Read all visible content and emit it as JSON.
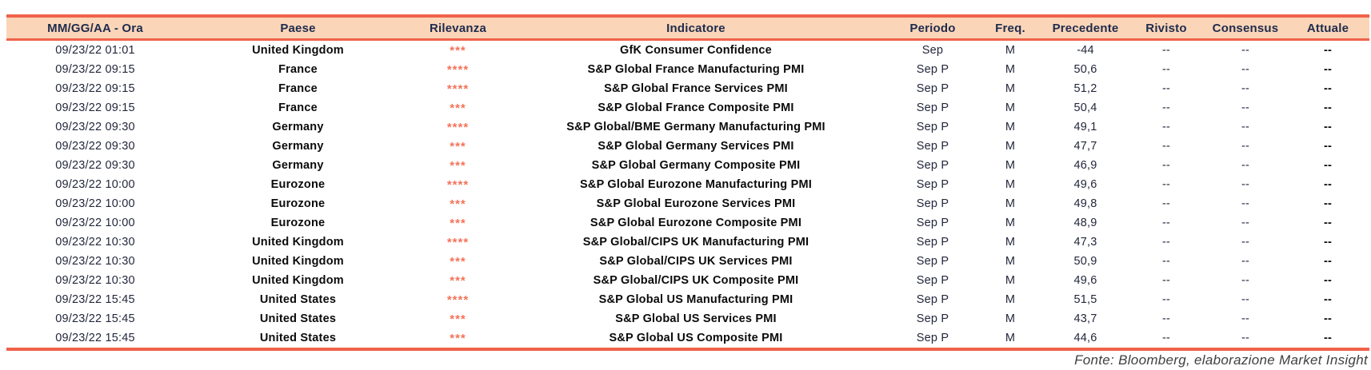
{
  "header": {
    "columns": [
      "MM/GG/AA - Ora",
      "Paese",
      "Rilevanza",
      "Indicatore",
      "Periodo",
      "Freq.",
      "Precedente",
      "Rivisto",
      "Consensus",
      "Attuale"
    ]
  },
  "rows": [
    {
      "datetime": "09/23/22 01:01",
      "country": "United Kingdom",
      "relevance": "***",
      "indicator": "GfK Consumer Confidence",
      "period": "Sep",
      "freq": "M",
      "previous": "-44",
      "revised": "--",
      "consensus": "--",
      "actual": "--"
    },
    {
      "datetime": "09/23/22 09:15",
      "country": "France",
      "relevance": "****",
      "indicator": "S&P Global France Manufacturing PMI",
      "period": "Sep P",
      "freq": "M",
      "previous": "50,6",
      "revised": "--",
      "consensus": "--",
      "actual": "--"
    },
    {
      "datetime": "09/23/22 09:15",
      "country": "France",
      "relevance": "****",
      "indicator": "S&P Global France Services PMI",
      "period": "Sep P",
      "freq": "M",
      "previous": "51,2",
      "revised": "--",
      "consensus": "--",
      "actual": "--"
    },
    {
      "datetime": "09/23/22 09:15",
      "country": "France",
      "relevance": "***",
      "indicator": "S&P Global France Composite PMI",
      "period": "Sep P",
      "freq": "M",
      "previous": "50,4",
      "revised": "--",
      "consensus": "--",
      "actual": "--"
    },
    {
      "datetime": "09/23/22 09:30",
      "country": "Germany",
      "relevance": "****",
      "indicator": "S&P Global/BME Germany Manufacturing PMI",
      "period": "Sep P",
      "freq": "M",
      "previous": "49,1",
      "revised": "--",
      "consensus": "--",
      "actual": "--"
    },
    {
      "datetime": "09/23/22 09:30",
      "country": "Germany",
      "relevance": "***",
      "indicator": "S&P Global Germany Services PMI",
      "period": "Sep P",
      "freq": "M",
      "previous": "47,7",
      "revised": "--",
      "consensus": "--",
      "actual": "--"
    },
    {
      "datetime": "09/23/22 09:30",
      "country": "Germany",
      "relevance": "***",
      "indicator": "S&P Global Germany Composite PMI",
      "period": "Sep P",
      "freq": "M",
      "previous": "46,9",
      "revised": "--",
      "consensus": "--",
      "actual": "--"
    },
    {
      "datetime": "09/23/22 10:00",
      "country": "Eurozone",
      "relevance": "****",
      "indicator": "S&P Global Eurozone Manufacturing PMI",
      "period": "Sep P",
      "freq": "M",
      "previous": "49,6",
      "revised": "--",
      "consensus": "--",
      "actual": "--"
    },
    {
      "datetime": "09/23/22 10:00",
      "country": "Eurozone",
      "relevance": "***",
      "indicator": "S&P Global Eurozone Services PMI",
      "period": "Sep P",
      "freq": "M",
      "previous": "49,8",
      "revised": "--",
      "consensus": "--",
      "actual": "--"
    },
    {
      "datetime": "09/23/22 10:00",
      "country": "Eurozone",
      "relevance": "***",
      "indicator": "S&P Global Eurozone Composite PMI",
      "period": "Sep P",
      "freq": "M",
      "previous": "48,9",
      "revised": "--",
      "consensus": "--",
      "actual": "--"
    },
    {
      "datetime": "09/23/22 10:30",
      "country": "United Kingdom",
      "relevance": "****",
      "indicator": "S&P Global/CIPS UK Manufacturing PMI",
      "period": "Sep P",
      "freq": "M",
      "previous": "47,3",
      "revised": "--",
      "consensus": "--",
      "actual": "--"
    },
    {
      "datetime": "09/23/22 10:30",
      "country": "United Kingdom",
      "relevance": "***",
      "indicator": "S&P Global/CIPS UK Services PMI",
      "period": "Sep P",
      "freq": "M",
      "previous": "50,9",
      "revised": "--",
      "consensus": "--",
      "actual": "--"
    },
    {
      "datetime": "09/23/22 10:30",
      "country": "United Kingdom",
      "relevance": "***",
      "indicator": "S&P Global/CIPS UK Composite PMI",
      "period": "Sep P",
      "freq": "M",
      "previous": "49,6",
      "revised": "--",
      "consensus": "--",
      "actual": "--"
    },
    {
      "datetime": "09/23/22 15:45",
      "country": "United States",
      "relevance": "****",
      "indicator": "S&P Global US Manufacturing PMI",
      "period": "Sep P",
      "freq": "M",
      "previous": "51,5",
      "revised": "--",
      "consensus": "--",
      "actual": "--"
    },
    {
      "datetime": "09/23/22 15:45",
      "country": "United States",
      "relevance": "***",
      "indicator": "S&P Global US Services PMI",
      "period": "Sep P",
      "freq": "M",
      "previous": "43,7",
      "revised": "--",
      "consensus": "--",
      "actual": "--"
    },
    {
      "datetime": "09/23/22 15:45",
      "country": "United States",
      "relevance": "***",
      "indicator": "S&P Global US Composite PMI",
      "period": "Sep P",
      "freq": "M",
      "previous": "44,6",
      "revised": "--",
      "consensus": "--",
      "actual": "--"
    }
  ],
  "footer": {
    "source_note": "Fonte: Bloomberg, elaborazione Market Insight"
  },
  "colors": {
    "accent": "#F0624A",
    "header_bg": "#FAD5B8",
    "header_text": "#1E2B4D",
    "star_color": "#F4735A",
    "body_text": "#23273B",
    "bold_text": "#0B0B0B",
    "footer_text": "#404040"
  }
}
